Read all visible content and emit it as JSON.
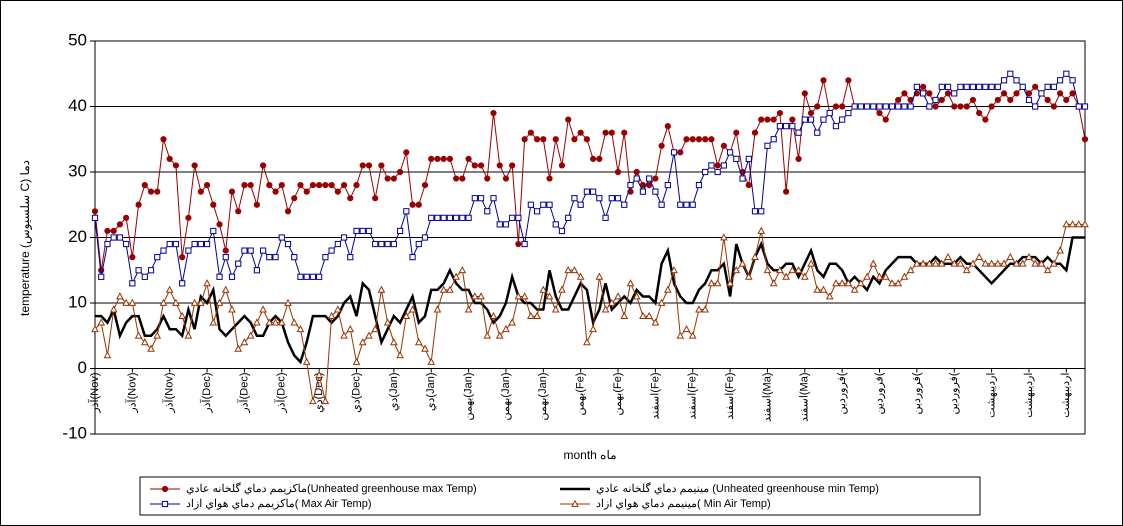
{
  "chart_data": {
    "type": "line",
    "x_label": "month ماه",
    "y_label": "temperature (سلسيوس C) دما",
    "categories": [
      "آذر(Nov)",
      null,
      null,
      null,
      null,
      null,
      "آذر(Nov)",
      null,
      null,
      null,
      null,
      null,
      "آذر(Nov)",
      null,
      null,
      null,
      null,
      null,
      "آذر(Dec)",
      null,
      null,
      null,
      null,
      null,
      "آذر(Dec)",
      null,
      null,
      null,
      null,
      null,
      "آذر(Dec)",
      null,
      null,
      null,
      null,
      null,
      "دي(Dec)",
      null,
      null,
      null,
      null,
      null,
      "دي(Dec)",
      null,
      null,
      null,
      null,
      null,
      "دي(Jan)",
      null,
      null,
      null,
      null,
      null,
      "دي(Jan)",
      null,
      null,
      null,
      null,
      null,
      "بهمن(Jan)",
      null,
      null,
      null,
      null,
      null,
      "بهمن(Jan)",
      null,
      null,
      null,
      null,
      null,
      "بهمن(Jan)",
      null,
      null,
      null,
      null,
      null,
      "بهمن(Fe)",
      null,
      null,
      null,
      null,
      null,
      "بهمن(Fe)",
      null,
      null,
      null,
      null,
      null,
      "اسفند(Fe)",
      null,
      null,
      null,
      null,
      null,
      "اسفند(Fe)",
      null,
      null,
      null,
      null,
      null,
      "اسفند(Fe)",
      null,
      null,
      null,
      null,
      null,
      "اسفند(Ma)",
      null,
      null,
      null,
      null,
      null,
      "اسفند(Ma)",
      null,
      null,
      null,
      null,
      null,
      "فروردين(",
      null,
      null,
      null,
      null,
      null,
      "فروردين(",
      null,
      null,
      null,
      null,
      null,
      "فروردين(",
      null,
      null,
      null,
      null,
      null,
      "فروردين(",
      null,
      null,
      null,
      null,
      null,
      "ارديبهشت",
      null,
      null,
      null,
      null,
      null,
      "ارديبهشت",
      null,
      null,
      null,
      null,
      null,
      "ارديبهشت",
      null,
      null,
      null
    ],
    "series": [
      {
        "name": "ماكزيمم دماي گلخانه عادي(Unheated greenhouse max Temp)",
        "color": "#990000",
        "marker": "circle",
        "width": 1,
        "values": [
          24,
          15,
          21,
          21,
          22,
          23,
          17,
          25,
          28,
          27,
          27,
          35,
          32,
          31,
          17,
          23,
          31,
          27,
          28,
          25,
          22,
          18,
          27,
          24,
          28,
          28,
          25,
          31,
          28,
          27,
          28,
          24,
          26,
          28,
          27,
          28,
          28,
          28,
          28,
          27,
          28,
          26,
          28,
          31,
          31,
          26,
          31,
          29,
          29,
          30,
          33,
          25,
          25,
          28,
          32,
          32,
          32,
          32,
          29,
          29,
          32,
          31,
          31,
          29,
          39,
          31,
          29,
          31,
          19,
          35,
          36,
          35,
          35,
          29,
          35,
          31,
          38,
          35,
          36,
          35,
          32,
          32,
          36,
          36,
          30,
          36,
          27,
          30,
          28,
          28,
          29,
          34,
          37,
          33,
          33,
          35,
          35,
          35,
          35,
          35,
          31,
          34,
          33,
          36,
          30,
          28,
          36,
          38,
          38,
          38,
          39,
          27,
          38,
          32,
          42,
          39,
          40,
          44,
          39,
          40,
          40,
          44,
          40,
          40,
          40,
          40,
          39,
          38,
          40,
          41,
          42,
          41,
          42,
          43,
          42,
          40,
          41,
          42,
          40,
          40,
          40,
          41,
          39,
          38,
          40,
          41,
          42,
          41,
          42,
          43,
          42,
          43,
          42,
          41,
          40,
          42,
          41,
          42,
          40,
          35
        ]
      },
      {
        "name": "مينيمم دماي گلخانه عادي (Unheated greenhouse min Temp)",
        "color": "#000000",
        "marker": "none",
        "width": 2.5,
        "values": [
          8,
          8,
          7,
          9,
          5,
          7,
          8,
          8,
          5,
          5,
          6,
          8,
          6,
          6,
          5,
          9,
          6,
          11,
          10,
          12,
          6,
          5,
          6,
          7,
          8,
          7,
          5,
          5,
          7,
          8,
          7,
          4,
          2,
          1,
          4,
          8,
          8,
          8,
          7,
          8,
          10,
          11,
          8,
          13,
          12,
          8,
          4,
          6,
          8,
          7,
          9,
          11,
          7,
          8,
          12,
          12,
          13,
          15,
          13,
          12,
          12,
          10,
          10,
          9,
          7,
          8,
          10,
          14,
          11,
          10,
          10,
          9,
          9,
          15,
          11,
          9,
          9,
          11,
          13,
          12,
          7,
          9,
          13,
          9,
          10,
          11,
          10,
          12,
          11,
          11,
          10,
          16,
          18,
          13,
          11,
          10,
          10,
          12,
          13,
          15,
          15,
          16,
          11,
          19,
          16,
          14,
          17,
          19,
          16,
          15,
          15,
          16,
          16,
          14,
          16,
          18,
          15,
          14,
          16,
          16,
          15,
          13,
          14,
          13,
          12,
          14,
          13,
          15,
          16,
          17,
          17,
          17,
          16,
          16,
          16,
          17,
          16,
          16,
          16,
          17,
          16,
          16,
          15,
          14,
          13,
          14,
          15,
          16,
          16,
          17,
          17,
          17,
          16,
          17,
          16,
          16,
          15,
          20,
          20,
          20
        ]
      },
      {
        "name": "ماكزيمم دماي هواي ازاد( Max Air Temp)",
        "color": "#000099",
        "marker": "square",
        "width": 1,
        "values": [
          23,
          14,
          19,
          20,
          20,
          19,
          13,
          15,
          14,
          15,
          17,
          18,
          19,
          19,
          13,
          18,
          19,
          19,
          19,
          21,
          14,
          17,
          14,
          16,
          18,
          18,
          15,
          18,
          17,
          17,
          20,
          19,
          17,
          14,
          14,
          14,
          14,
          17,
          18,
          19,
          20,
          17,
          21,
          21,
          21,
          19,
          19,
          19,
          19,
          21,
          24,
          17,
          19,
          20,
          23,
          23,
          23,
          23,
          23,
          23,
          23,
          26,
          26,
          24,
          26,
          22,
          22,
          23,
          23,
          19,
          25,
          24,
          25,
          25,
          22,
          21,
          23,
          26,
          25,
          27,
          27,
          26,
          23,
          26,
          26,
          25,
          28,
          29,
          27,
          29,
          27,
          25,
          28,
          33,
          25,
          25,
          25,
          28,
          30,
          31,
          30,
          31,
          33,
          32,
          29,
          32,
          24,
          24,
          34,
          35,
          37,
          37,
          37,
          36,
          38,
          38,
          36,
          38,
          39,
          37,
          38,
          39,
          40,
          40,
          40,
          40,
          40,
          40,
          40,
          40,
          40,
          40,
          43,
          42,
          40,
          41,
          43,
          43,
          42,
          43,
          43,
          43,
          43,
          43,
          43,
          43,
          44,
          45,
          44,
          43,
          41,
          40,
          42,
          43,
          43,
          44,
          45,
          44,
          40,
          40
        ]
      },
      {
        "name": "مينيمم دماي هواي ازاد( Min Air Temp)",
        "color": "#993300",
        "marker": "triangle",
        "width": 1,
        "values": [
          6,
          7,
          2,
          9,
          11,
          10,
          10,
          5,
          4,
          3,
          5,
          10,
          12,
          10,
          8,
          5,
          10,
          10,
          13,
          7,
          10,
          12,
          9,
          3,
          4,
          5,
          7,
          9,
          7,
          7,
          7,
          10,
          7,
          6,
          1,
          -5,
          -1,
          -5,
          8,
          9,
          5,
          6,
          1,
          4,
          5,
          6,
          12,
          7,
          4,
          2,
          8,
          9,
          4,
          3,
          1,
          9,
          12,
          12,
          14,
          15,
          9,
          11,
          11,
          5,
          8,
          5,
          6,
          7,
          11,
          11,
          8,
          8,
          12,
          11,
          9,
          12,
          15,
          15,
          14,
          4,
          6,
          14,
          9,
          10,
          11,
          8,
          13,
          11,
          8,
          8,
          7,
          10,
          12,
          15,
          5,
          6,
          5,
          9,
          9,
          13,
          13,
          20,
          13,
          15,
          16,
          14,
          17,
          21,
          15,
          13,
          15,
          14,
          15,
          15,
          14,
          16,
          12,
          12,
          11,
          13,
          13,
          13,
          12,
          13,
          14,
          16,
          14,
          14,
          13,
          13,
          14,
          15,
          16,
          16,
          16,
          16,
          16,
          17,
          16,
          16,
          15,
          16,
          17,
          16,
          16,
          16,
          16,
          17,
          16,
          16,
          17,
          16,
          16,
          15,
          16,
          18,
          22,
          22,
          22,
          22
        ]
      }
    ],
    "ylim": [
      -10,
      50
    ],
    "yticks": [
      -10,
      0,
      10,
      20,
      30,
      40,
      50
    ],
    "grid": true
  }
}
